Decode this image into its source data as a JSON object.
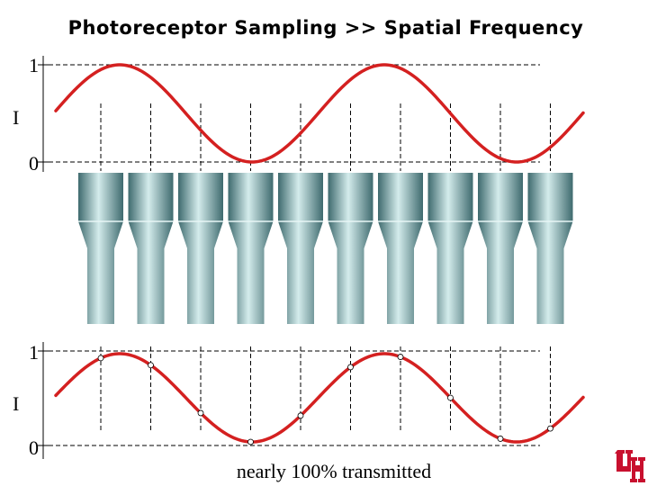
{
  "title": "Photoreceptor Sampling >> Spatial Frequency",
  "top_plot": {
    "ylabel": "I",
    "ytick_high": "1",
    "ytick_low": "0"
  },
  "bottom_plot": {
    "ylabel": "I",
    "ytick_high": "1",
    "ytick_low": "0"
  },
  "caption": "nearly 100% transmitted",
  "photoreceptor_count": 10,
  "logo": "UH",
  "colors": {
    "wave": "#d42020",
    "logo": "#c8102e",
    "receptor_light": "#d4ecec",
    "receptor_dark": "#3e6a6e",
    "dashes": "#000000"
  }
}
